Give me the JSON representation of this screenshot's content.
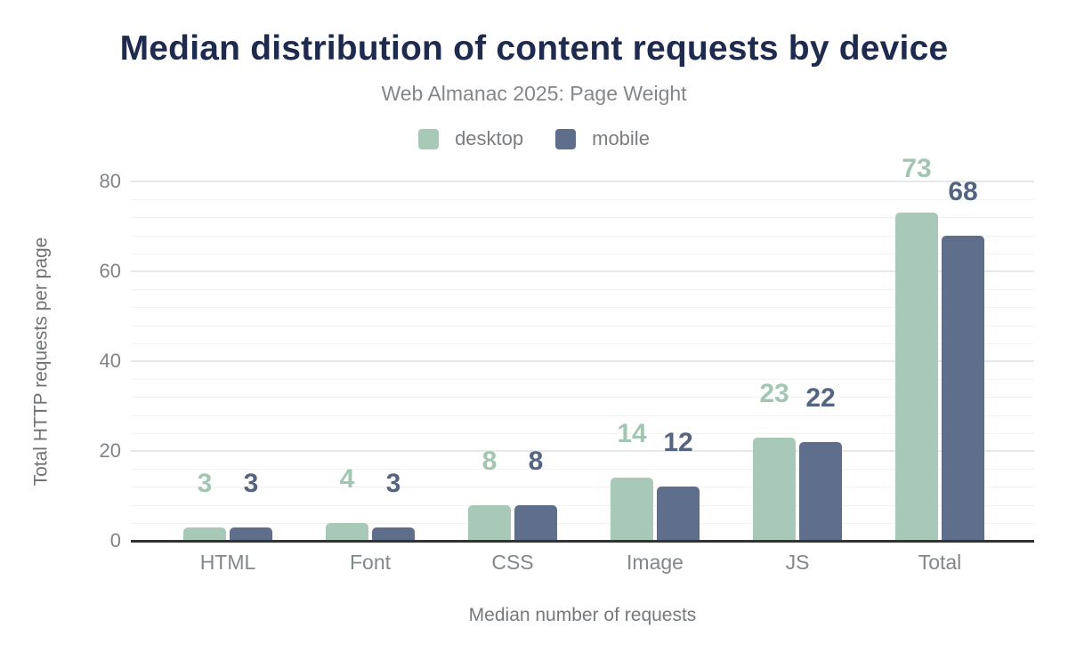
{
  "page": {
    "background": "#ffffff",
    "title_color": "#1e2b4e"
  },
  "chart_data": {
    "type": "bar",
    "title": "Median distribution of content requests by device",
    "subtitle": "Web Almanac 2025: Page Weight",
    "categories": [
      "HTML",
      "Font",
      "CSS",
      "Image",
      "JS",
      "Total"
    ],
    "series": [
      {
        "name": "desktop",
        "color": "#a8c9b7",
        "label_color": "#a3c6b2",
        "values": [
          3,
          4,
          8,
          14,
          23,
          73
        ]
      },
      {
        "name": "mobile",
        "color": "#5f6e8b",
        "label_color": "#556480",
        "values": [
          3,
          3,
          8,
          12,
          22,
          68
        ]
      }
    ],
    "xlabel": "Median number of requests",
    "ylabel": "Total HTTP requests per page",
    "ylim": [
      0,
      80
    ],
    "yticks": [
      0,
      20,
      40,
      60,
      80
    ],
    "minor_grid_step": 4,
    "grid": "on",
    "legend_position": "top",
    "value_labels": "above-bars"
  }
}
